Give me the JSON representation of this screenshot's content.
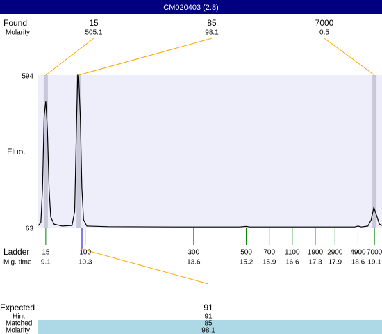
{
  "chart_data": {
    "type": "line",
    "title": "CM020403 (2:8)",
    "y_label": "Fluo.",
    "ylim": [
      63,
      594
    ],
    "yticks": [
      594,
      63
    ],
    "xlim": [
      8.87,
      19.33
    ],
    "x": [
      8.87,
      8.95,
      9.0,
      9.05,
      9.1,
      9.15,
      9.2,
      9.25,
      9.35,
      9.6,
      9.9,
      9.98,
      10.03,
      10.07,
      10.1,
      10.15,
      10.2,
      10.25,
      10.35,
      11.0,
      13.0,
      15.0,
      15.2,
      15.3,
      17.0,
      18.5,
      18.6,
      18.7,
      18.9,
      19.0,
      19.08,
      19.15,
      19.25,
      19.33
    ],
    "values": [
      70,
      80,
      200,
      450,
      504,
      400,
      200,
      100,
      75,
      68,
      70,
      120,
      400,
      594,
      594,
      450,
      200,
      90,
      68,
      66,
      65,
      65,
      67,
      65,
      65,
      65,
      68,
      65,
      68,
      90,
      133,
      110,
      75,
      70
    ],
    "color": "#000000",
    "found_label": "Found",
    "molarity_label": "Molarity",
    "found": {
      "sizes": [
        15,
        85,
        7000
      ],
      "molarity": [
        505.1,
        98.1,
        0.5
      ],
      "x": [
        9.1,
        10.1,
        19.1
      ]
    },
    "ladder_label": "Ladder",
    "migtime_label": "Mig. time",
    "ladder": {
      "sizes": [
        15,
        100,
        300,
        500,
        700,
        1100,
        1900,
        2900,
        4900,
        7000
      ],
      "x": [
        9.1,
        10.3,
        13.6,
        15.2,
        15.9,
        16.6,
        17.3,
        17.9,
        18.6,
        19.1
      ]
    },
    "expected": {
      "labels": [
        "Expected",
        "Hint",
        "Matched",
        "Molarity"
      ],
      "values": [
        91,
        91,
        85,
        98.1
      ]
    }
  }
}
